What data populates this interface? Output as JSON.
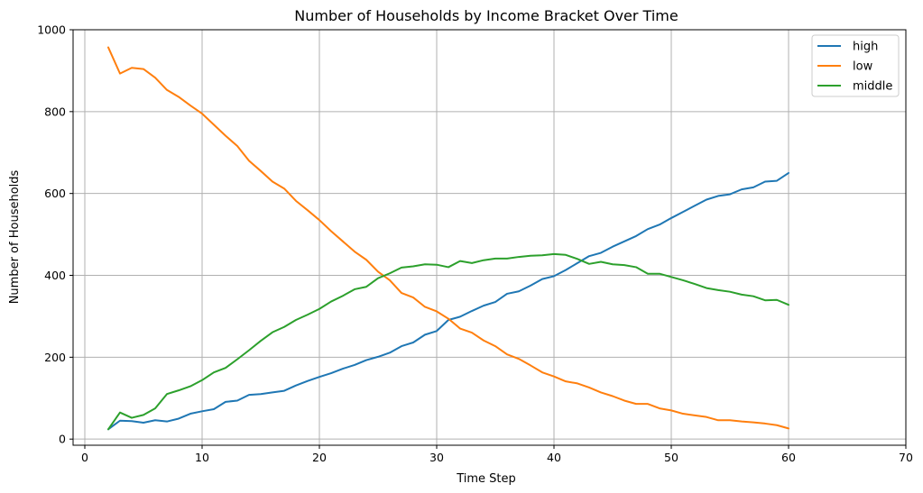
{
  "chart_data": {
    "type": "line",
    "title": "Number of Households by Income Bracket Over Time",
    "xlabel": "Time Step",
    "ylabel": "Number of Households",
    "xlim": [
      -1,
      70
    ],
    "ylim": [
      -15,
      1000
    ],
    "xticks": [
      0,
      10,
      20,
      30,
      40,
      50,
      60,
      70
    ],
    "yticks": [
      0,
      200,
      400,
      600,
      800,
      1000
    ],
    "grid": true,
    "legend": "top-right",
    "x": [
      2,
      3,
      4,
      5,
      6,
      7,
      8,
      9,
      10,
      11,
      12,
      13,
      14,
      15,
      16,
      17,
      18,
      19,
      20,
      21,
      22,
      23,
      24,
      25,
      26,
      27,
      28,
      29,
      30,
      31,
      32,
      33,
      34,
      35,
      36,
      37,
      38,
      39,
      40,
      41,
      42,
      43,
      44,
      45,
      46,
      47,
      48,
      49,
      50,
      51,
      52,
      53,
      54,
      55,
      56,
      57,
      58,
      59,
      60
    ],
    "series": [
      {
        "name": "high",
        "color": "#1f77b4",
        "values": [
          24,
          45,
          44,
          40,
          46,
          43,
          50,
          62,
          68,
          73,
          91,
          94,
          108,
          110,
          114,
          118,
          131,
          142,
          152,
          161,
          172,
          181,
          193,
          201,
          211,
          227,
          236,
          255,
          264,
          291,
          299,
          313,
          326,
          335,
          355,
          361,
          375,
          391,
          398,
          413,
          430,
          447,
          455,
          470,
          483,
          496,
          513,
          524,
          540,
          555,
          570,
          585,
          594,
          598,
          610,
          615,
          629,
          631,
          650
        ]
      },
      {
        "name": "low",
        "color": "#ff7f0e",
        "values": [
          957,
          893,
          907,
          904,
          883,
          853,
          836,
          815,
          795,
          768,
          741,
          716,
          680,
          655,
          629,
          612,
          582,
          559,
          535,
          508,
          483,
          458,
          438,
          409,
          388,
          357,
          346,
          323,
          312,
          294,
          270,
          260,
          241,
          227,
          207,
          196,
          180,
          163,
          153,
          141,
          136,
          126,
          114,
          105,
          94,
          86,
          86,
          75,
          70,
          62,
          58,
          54,
          46,
          46,
          43,
          41,
          38,
          34,
          26
        ]
      },
      {
        "name": "middle",
        "color": "#2ca02c",
        "values": [
          24,
          65,
          52,
          59,
          75,
          110,
          119,
          129,
          144,
          163,
          174,
          195,
          217,
          240,
          261,
          274,
          291,
          304,
          318,
          336,
          350,
          366,
          372,
          393,
          405,
          419,
          422,
          427,
          426,
          420,
          435,
          430,
          437,
          441,
          441,
          445,
          448,
          449,
          452,
          450,
          440,
          428,
          433,
          427,
          425,
          420,
          404,
          404,
          396,
          388,
          379,
          369,
          364,
          360,
          353,
          349,
          339,
          340,
          328
        ]
      }
    ]
  }
}
